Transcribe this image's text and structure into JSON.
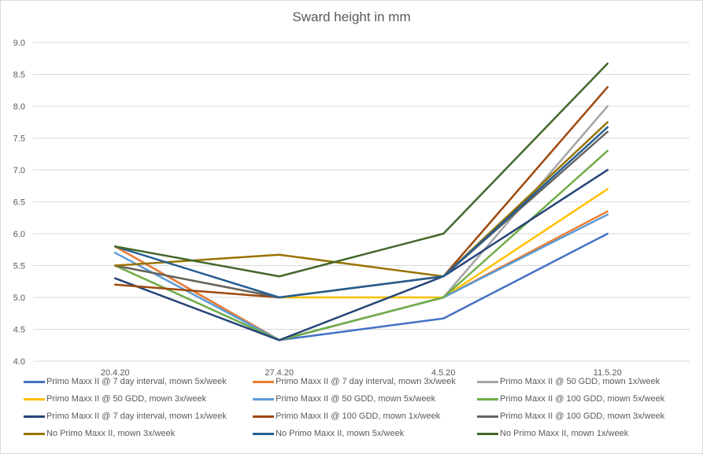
{
  "chart_data": {
    "type": "line",
    "title": "Sward height in mm",
    "xlabel": "",
    "ylabel": "",
    "categories": [
      "20.4.20",
      "27.4.20",
      "4.5.20",
      "11.5.20"
    ],
    "ylim": [
      4.0,
      9.0
    ],
    "yticks": [
      "4.0",
      "4.5",
      "5.0",
      "5.5",
      "6.0",
      "6.5",
      "7.0",
      "7.5",
      "8.0",
      "8.5",
      "9.0"
    ],
    "grid": true,
    "legend_position": "bottom",
    "series": [
      {
        "name": "Primo Maxx II @ 7 day interval, mown 5x/week",
        "color": "#4472c4",
        "values": [
          5.8,
          4.33,
          4.67,
          6.0
        ]
      },
      {
        "name": "Primo Maxx II @ 7 day interval, mown 3x/week",
        "color": "#ed7d31",
        "values": [
          5.8,
          4.33,
          5.0,
          6.35
        ]
      },
      {
        "name": "Primo Maxx II @ 50 GDD, mown 1x/week",
        "color": "#a5a5a5",
        "values": [
          5.5,
          4.33,
          5.0,
          8.0
        ]
      },
      {
        "name": "Primo Maxx II @ 50 GDD, mown 3x/week",
        "color": "#ffc000",
        "values": [
          5.5,
          5.0,
          5.0,
          6.7
        ]
      },
      {
        "name": "Primo Maxx II @ 50 GDD, mown 5x/week",
        "color": "#5b9bd5",
        "values": [
          5.7,
          4.33,
          5.0,
          6.3
        ]
      },
      {
        "name": "Primo Maxx II @ 100 GDD, mown 5x/week",
        "color": "#70ad47",
        "values": [
          5.5,
          4.33,
          5.0,
          7.3
        ]
      },
      {
        "name": "Primo Maxx II @ 7 day interval, mown 1x/week",
        "color": "#264478",
        "values": [
          5.3,
          4.33,
          5.33,
          7.0
        ]
      },
      {
        "name": "Primo Maxx II @ 100 GDD, mown 1x/week",
        "color": "#9e480e",
        "values": [
          5.2,
          5.0,
          5.33,
          8.3
        ]
      },
      {
        "name": "Primo Maxx II @ 100 GDD, mown 3x/week",
        "color": "#636363",
        "values": [
          5.5,
          5.0,
          5.33,
          7.6
        ]
      },
      {
        "name": "No Primo Maxx II, mown 3x/week",
        "color": "#997300",
        "values": [
          5.5,
          5.67,
          5.33,
          7.75
        ]
      },
      {
        "name": "No Primo Maxx II, mown 5x/week",
        "color": "#255e91",
        "values": [
          5.8,
          5.0,
          5.33,
          7.67
        ]
      },
      {
        "name": "No Primo Maxx II, mown 1x/week",
        "color": "#43682b",
        "values": [
          5.8,
          5.33,
          6.0,
          8.67
        ]
      }
    ]
  }
}
